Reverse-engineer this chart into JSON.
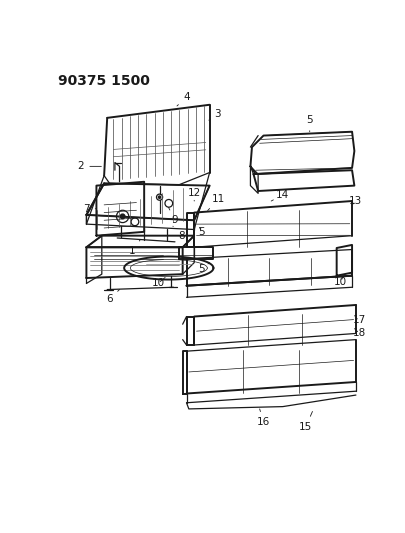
{
  "title": "90375 1500",
  "bg_color": "#ffffff",
  "line_color": "#1a1a1a",
  "title_fontsize": 10,
  "label_fontsize": 7.5,
  "lw": 0.9
}
